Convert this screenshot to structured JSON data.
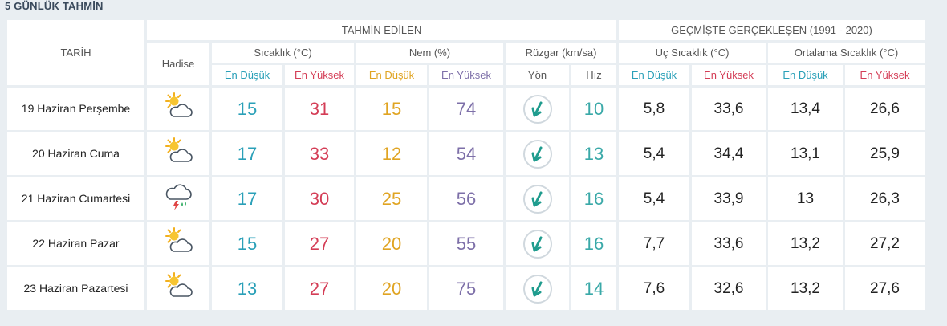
{
  "header": {
    "title": "5 GÜNLÜK TAHMİN"
  },
  "table": {
    "tarih": "TARİH",
    "hadise": "Hadise",
    "forecast_group": "TAHMİN EDİLEN",
    "history_group": "GEÇMİŞTE GERÇEKLEŞEN (1991 - 2020)",
    "temp": "Sıcaklık (°C)",
    "humidity": "Nem (%)",
    "wind": "Rüzgar (km/sa)",
    "extreme_temp": "Uç Sıcaklık (°C)",
    "avg_temp": "Ortalama Sıcaklık (°C)",
    "low": "En Düşük",
    "high": "En Yüksek",
    "direction": "Yön",
    "speed": "Hız"
  },
  "rows": [
    {
      "date": "19 Haziran Perşembe",
      "icon": "partly-cloudy-icon",
      "temp_low": "15",
      "temp_high": "31",
      "hum_low": "15",
      "hum_high": "74",
      "wind_speed": "10",
      "ext_low": "5,8",
      "ext_high": "33,6",
      "avg_low": "13,4",
      "avg_high": "26,6"
    },
    {
      "date": "20 Haziran Cuma",
      "icon": "partly-cloudy-icon",
      "temp_low": "17",
      "temp_high": "33",
      "hum_low": "12",
      "hum_high": "54",
      "wind_speed": "13",
      "ext_low": "5,4",
      "ext_high": "34,4",
      "avg_low": "13,1",
      "avg_high": "25,9"
    },
    {
      "date": "21 Haziran Cumartesi",
      "icon": "thunderstorm-icon",
      "temp_low": "17",
      "temp_high": "30",
      "hum_low": "25",
      "hum_high": "56",
      "wind_speed": "16",
      "ext_low": "5,4",
      "ext_high": "33,9",
      "avg_low": "13",
      "avg_high": "26,3"
    },
    {
      "date": "22 Haziran Pazar",
      "icon": "partly-cloudy-icon",
      "temp_low": "15",
      "temp_high": "27",
      "hum_low": "20",
      "hum_high": "55",
      "wind_speed": "16",
      "ext_low": "7,7",
      "ext_high": "33,6",
      "avg_low": "13,2",
      "avg_high": "27,2"
    },
    {
      "date": "23 Haziran Pazartesi",
      "icon": "partly-cloudy-icon",
      "temp_low": "13",
      "temp_high": "27",
      "hum_low": "20",
      "hum_high": "75",
      "wind_speed": "14",
      "ext_low": "7,6",
      "ext_high": "32,6",
      "avg_low": "13,2",
      "avg_high": "27,6"
    }
  ],
  "colors": {
    "low": "#2aa0b8",
    "high": "#d43d56",
    "hum_low": "#e0a422",
    "hum_high": "#7d6fa8",
    "wind_speed": "#3aa9a8",
    "wind_arrow": "#1f9c8e"
  }
}
